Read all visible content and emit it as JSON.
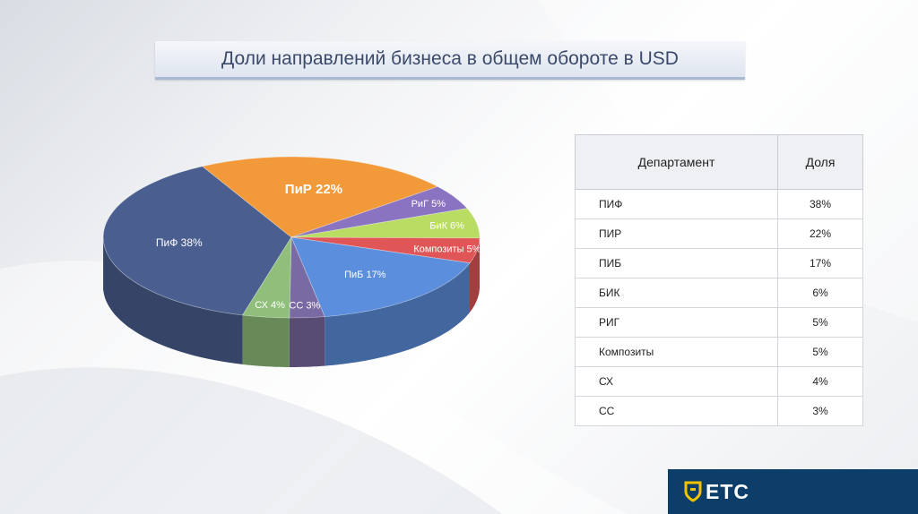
{
  "slide": {
    "title": "Доли направлений бизнеса в общем обороте в USD",
    "logo_text": "ETC"
  },
  "chart_data": {
    "type": "pie",
    "title": "",
    "slices": [
      {
        "label": "ПиФ 38%",
        "value": 38,
        "color": "#4a5f8f"
      },
      {
        "label": "ПиР 22%",
        "value": 22,
        "color": "#f29a3a"
      },
      {
        "label": "РиГ 5%",
        "value": 5,
        "color": "#8a74c2"
      },
      {
        "label": "БиК 6%",
        "value": 6,
        "color": "#b9dc63"
      },
      {
        "label": "Композиты 5%",
        "value": 5,
        "color": "#e05656"
      },
      {
        "label": "ПиБ 17%",
        "value": 17,
        "color": "#5b8fdd"
      },
      {
        "label": "СС 3%",
        "value": 3,
        "color": "#7a6aa3"
      },
      {
        "label": "СХ 4%",
        "value": 4,
        "color": "#8fbf7a"
      }
    ]
  },
  "table": {
    "headers": [
      "Департамент",
      "Доля"
    ],
    "rows": [
      {
        "name": "ПИФ",
        "share": "38%"
      },
      {
        "name": "ПИР",
        "share": "22%"
      },
      {
        "name": "ПИБ",
        "share": "17%"
      },
      {
        "name": "БИК",
        "share": "6%"
      },
      {
        "name": "РИГ",
        "share": "5%"
      },
      {
        "name": "Композиты",
        "share": "5%"
      },
      {
        "name": "СХ",
        "share": "4%"
      },
      {
        "name": "СС",
        "share": "3%"
      }
    ]
  }
}
